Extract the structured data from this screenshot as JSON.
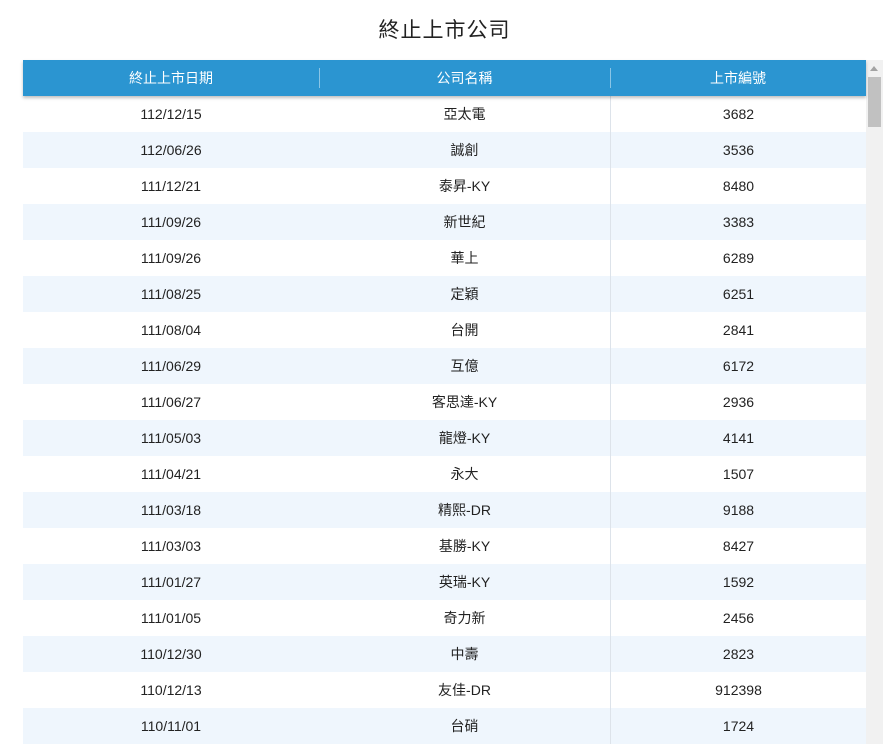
{
  "title": "終止上市公司",
  "columns": [
    "終止上市日期",
    "公司名稱",
    "上市編號"
  ],
  "rows": [
    [
      "112/12/15",
      "亞太電",
      "3682"
    ],
    [
      "112/06/26",
      "誠創",
      "3536"
    ],
    [
      "111/12/21",
      "泰昇-KY",
      "8480"
    ],
    [
      "111/09/26",
      "新世紀",
      "3383"
    ],
    [
      "111/09/26",
      "華上",
      "6289"
    ],
    [
      "111/08/25",
      "定穎",
      "6251"
    ],
    [
      "111/08/04",
      "台開",
      "2841"
    ],
    [
      "111/06/29",
      "互億",
      "6172"
    ],
    [
      "111/06/27",
      "客思達-KY",
      "2936"
    ],
    [
      "111/05/03",
      "龍燈-KY",
      "4141"
    ],
    [
      "111/04/21",
      "永大",
      "1507"
    ],
    [
      "111/03/18",
      "精熙-DR",
      "9188"
    ],
    [
      "111/03/03",
      "基勝-KY",
      "8427"
    ],
    [
      "111/01/27",
      "英瑞-KY",
      "1592"
    ],
    [
      "111/01/05",
      "奇力新",
      "2456"
    ],
    [
      "110/12/30",
      "中壽",
      "2823"
    ],
    [
      "110/12/13",
      "友佳-DR",
      "912398"
    ],
    [
      "110/11/01",
      "台硝",
      "1724"
    ]
  ],
  "colors": {
    "header": "#2b95d1",
    "stripe": "#eff6fd"
  }
}
